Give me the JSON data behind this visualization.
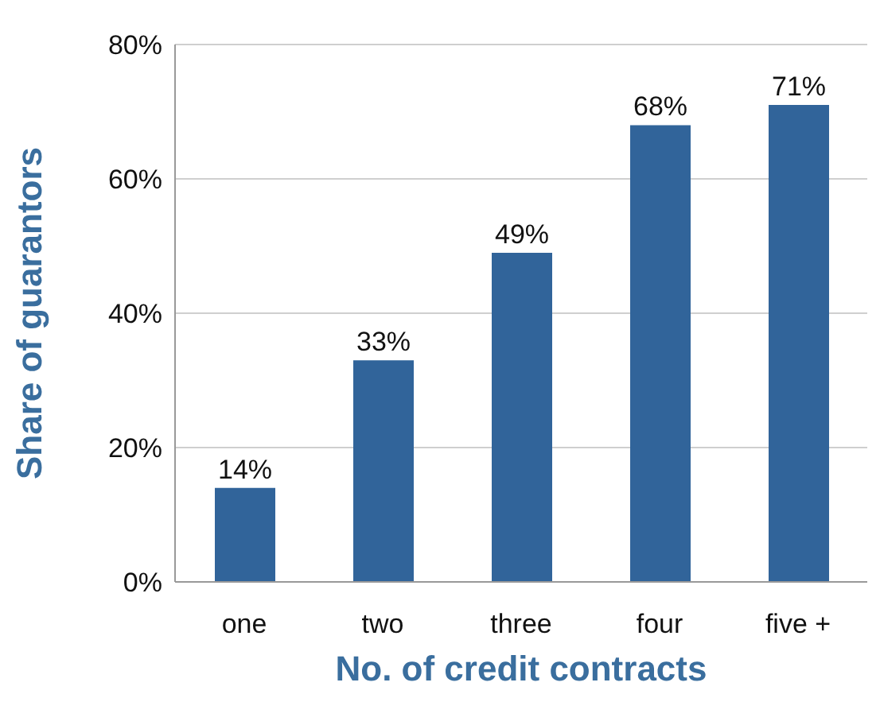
{
  "chart_data": {
    "type": "bar",
    "xlabel": "No. of credit contracts",
    "ylabel": "Share of guarantors",
    "categories": [
      "one",
      "two",
      "three",
      "four",
      "five +"
    ],
    "values": [
      14,
      33,
      49,
      68,
      71
    ],
    "value_labels": [
      "14%",
      "33%",
      "49%",
      "68%",
      "71%"
    ],
    "color": "#31649a",
    "ylim": [
      0,
      80
    ],
    "yticks": [
      {
        "value": 0,
        "label": "0%"
      },
      {
        "value": 20,
        "label": "20%"
      },
      {
        "value": 40,
        "label": "40%"
      },
      {
        "value": 60,
        "label": "60%"
      },
      {
        "value": 80,
        "label": "80%"
      }
    ],
    "grid": "y"
  }
}
